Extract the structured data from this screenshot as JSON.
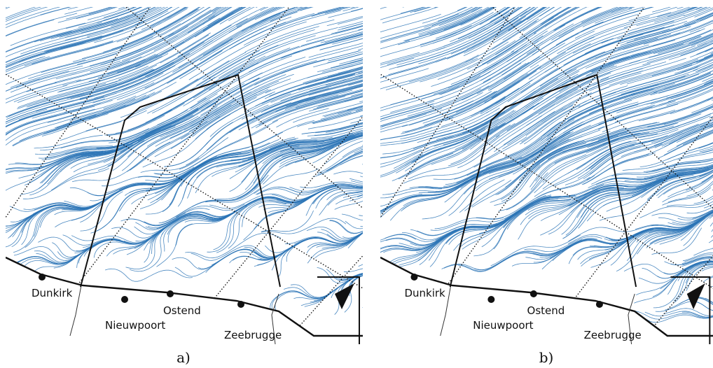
{
  "panels": [
    {
      "caption": "a)",
      "places": [
        "Dunkirk",
        "Nieuwpoort",
        "Ostend",
        "Zeebrugge"
      ]
    },
    {
      "caption": "b)",
      "places": [
        "Dunkirk",
        "Nieuwpoort",
        "Ostend",
        "Zeebrugge"
      ]
    }
  ]
}
